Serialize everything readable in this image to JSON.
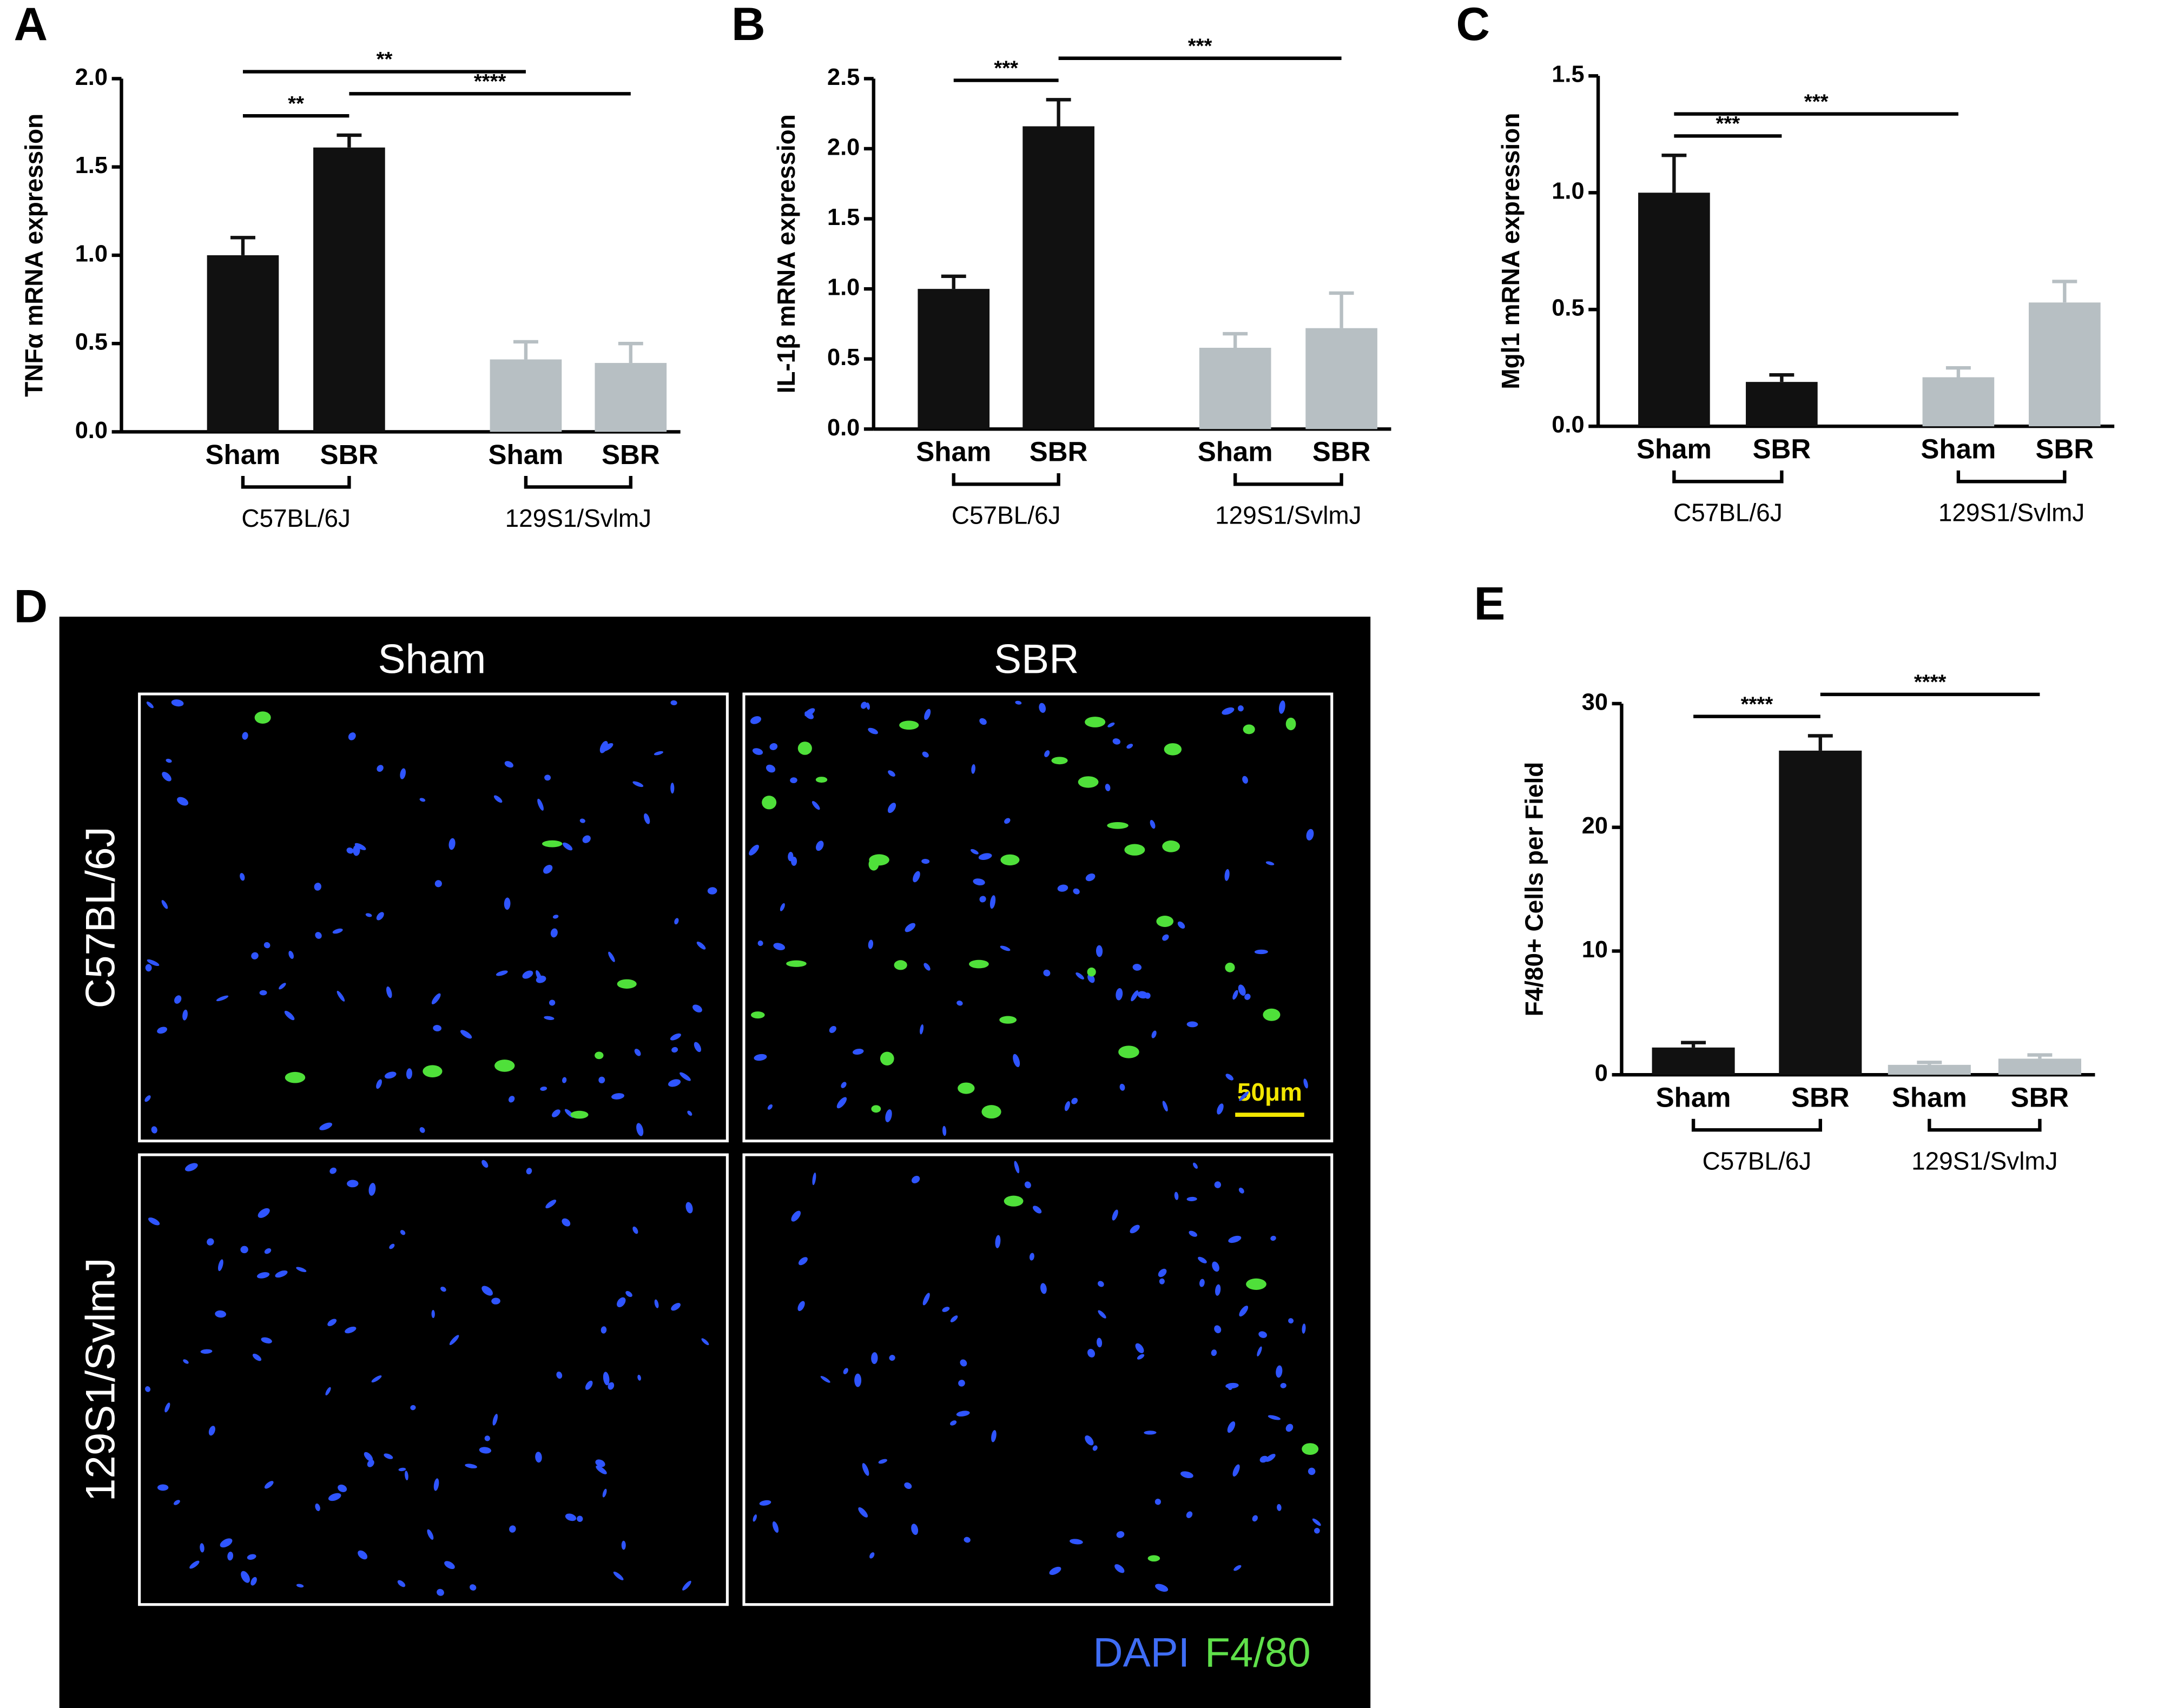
{
  "chart_data": [
    {
      "type": "bar",
      "panel": "A",
      "ylabel": "TNFα mRNA expression",
      "categories": [
        "Sham",
        "SBR",
        "Sham",
        "SBR"
      ],
      "groups": [
        "C57BL/6J",
        "129S1/SvlmJ"
      ],
      "values": [
        1.0,
        1.61,
        0.41,
        0.39
      ],
      "errors": [
        0.1,
        0.07,
        0.1,
        0.11
      ],
      "colors": [
        "#111111",
        "#111111",
        "#b7bfc3",
        "#b7bfc3"
      ],
      "ylim": [
        0,
        2
      ],
      "yticks": [
        {
          "value": 0,
          "label": "0.0"
        },
        {
          "value": 0.5,
          "label": "0.5"
        },
        {
          "value": 1,
          "label": "1.0"
        },
        {
          "value": 1.5,
          "label": "1.5"
        },
        {
          "value": 2,
          "label": "2.0"
        }
      ],
      "annotations": [
        {
          "from": 0,
          "to": 1,
          "label": "**"
        },
        {
          "from": 1,
          "to": 3,
          "label": "****"
        },
        {
          "from": 0,
          "to": 2,
          "label": "**"
        }
      ]
    },
    {
      "type": "bar",
      "panel": "B",
      "ylabel": "IL-1β mRNA expression",
      "categories": [
        "Sham",
        "SBR",
        "Sham",
        "SBR"
      ],
      "groups": [
        "C57BL/6J",
        "129S1/SvlmJ"
      ],
      "values": [
        1.0,
        2.16,
        0.58,
        0.72
      ],
      "errors": [
        0.09,
        0.19,
        0.1,
        0.25
      ],
      "colors": [
        "#111111",
        "#111111",
        "#b7bfc3",
        "#b7bfc3"
      ],
      "ylim": [
        0,
        2.5
      ],
      "yticks": [
        {
          "value": 0,
          "label": "0.0"
        },
        {
          "value": 0.5,
          "label": "0.5"
        },
        {
          "value": 1,
          "label": "1.0"
        },
        {
          "value": 1.5,
          "label": "1.5"
        },
        {
          "value": 2,
          "label": "2.0"
        },
        2.5
      ],
      "annotations": [
        {
          "from": 0,
          "to": 1,
          "label": "***"
        },
        {
          "from": 1,
          "to": 3,
          "label": "***"
        }
      ]
    },
    {
      "type": "bar",
      "panel": "C",
      "ylabel": "Mgl1 mRNA expression",
      "categories": [
        "Sham",
        "SBR",
        "Sham",
        "SBR"
      ],
      "groups": [
        "C57BL/6J",
        "129S1/SvlmJ"
      ],
      "values": [
        1.0,
        0.19,
        0.21,
        0.53
      ],
      "errors": [
        0.16,
        0.03,
        0.04,
        0.09
      ],
      "colors": [
        "#111111",
        "#111111",
        "#b7bfc3",
        "#b7bfc3"
      ],
      "ylim": [
        0,
        1.5
      ],
      "yticks": [
        {
          "value": 0,
          "label": "0.0"
        },
        0.5,
        {
          "value": 1,
          "label": "1.0"
        },
        1.5
      ],
      "annotations": [
        {
          "from": 0,
          "to": 1,
          "label": "***"
        },
        {
          "from": 0,
          "to": 2,
          "label": "***"
        }
      ]
    },
    {
      "type": "bar",
      "panel": "E",
      "ylabel": "F4/80+ Cells per Field",
      "categories": [
        "Sham",
        "SBR",
        "Sham",
        "SBR"
      ],
      "groups": [
        "C57BL/6J",
        "129S1/SvlmJ"
      ],
      "values": [
        2.2,
        26.2,
        0.8,
        1.3
      ],
      "errors": [
        0.4,
        1.2,
        0.2,
        0.3
      ],
      "colors": [
        "#111111",
        "#111111",
        "#b7bfc3",
        "#b7bfc3"
      ],
      "ylim": [
        0,
        30
      ],
      "yticks": [
        0,
        10,
        20,
        30
      ],
      "annotations": [
        {
          "from": 0,
          "to": 1,
          "label": "****"
        },
        {
          "from": 1,
          "to": 3,
          "label": "****"
        }
      ]
    }
  ],
  "panel_d": {
    "panel": "D",
    "columns": [
      "Sham",
      "SBR"
    ],
    "rows": [
      "C57BL/6J",
      "129S1/SvlmJ"
    ],
    "scale_bar": "50μm",
    "legend": [
      "DAPI",
      "F4/80"
    ]
  }
}
